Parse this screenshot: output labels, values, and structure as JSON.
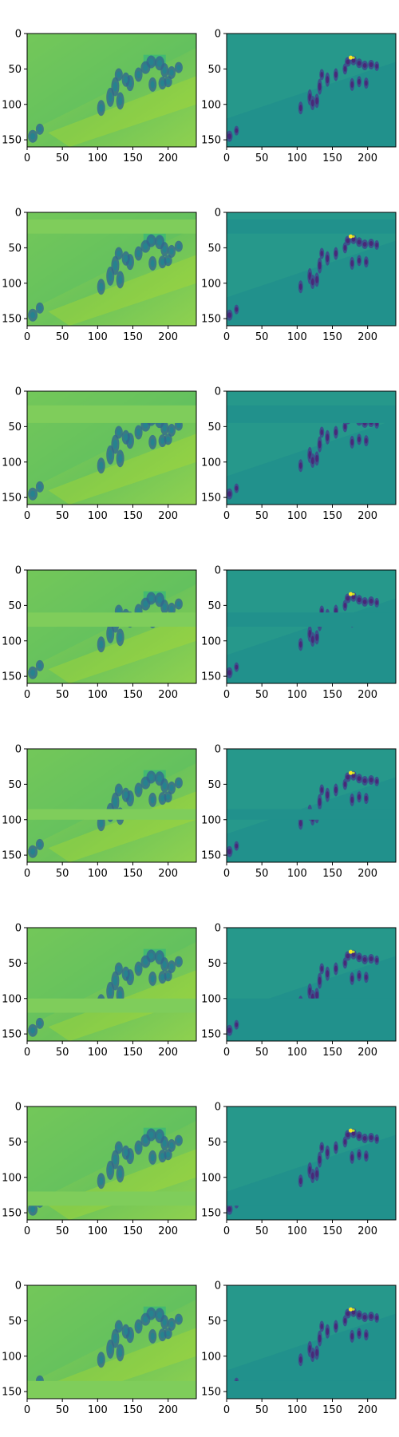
{
  "chart_data": {
    "type": "heatmap",
    "layout": {
      "rows": 8,
      "cols": 2
    },
    "colormap": "viridis",
    "grid": false,
    "xlim": [
      0,
      240
    ],
    "ylim": [
      160,
      0
    ],
    "xticks": [
      0,
      50,
      100,
      150,
      200
    ],
    "yticks": [
      0,
      50,
      100,
      150
    ],
    "xtick_labels": [
      "0",
      "50",
      "100",
      "150",
      "200"
    ],
    "ytick_labels": [
      "0",
      "50",
      "100",
      "150"
    ],
    "panel_types": [
      "feature-map-blurred",
      "feature-map-sharp"
    ],
    "masked_bands": [
      {
        "row": 1,
        "y": [
          0,
          0
        ]
      },
      {
        "row": 2,
        "y": [
          10,
          30
        ]
      },
      {
        "row": 3,
        "y": [
          20,
          45
        ]
      },
      {
        "row": 4,
        "y": [
          60,
          80
        ]
      },
      {
        "row": 5,
        "y": [
          85,
          100
        ]
      },
      {
        "row": 6,
        "y": [
          100,
          120
        ]
      },
      {
        "row": 7,
        "y": [
          120,
          140
        ]
      },
      {
        "row": 8,
        "y": [
          135,
          160
        ]
      }
    ],
    "title": "",
    "xlabel": "",
    "ylabel": ""
  }
}
